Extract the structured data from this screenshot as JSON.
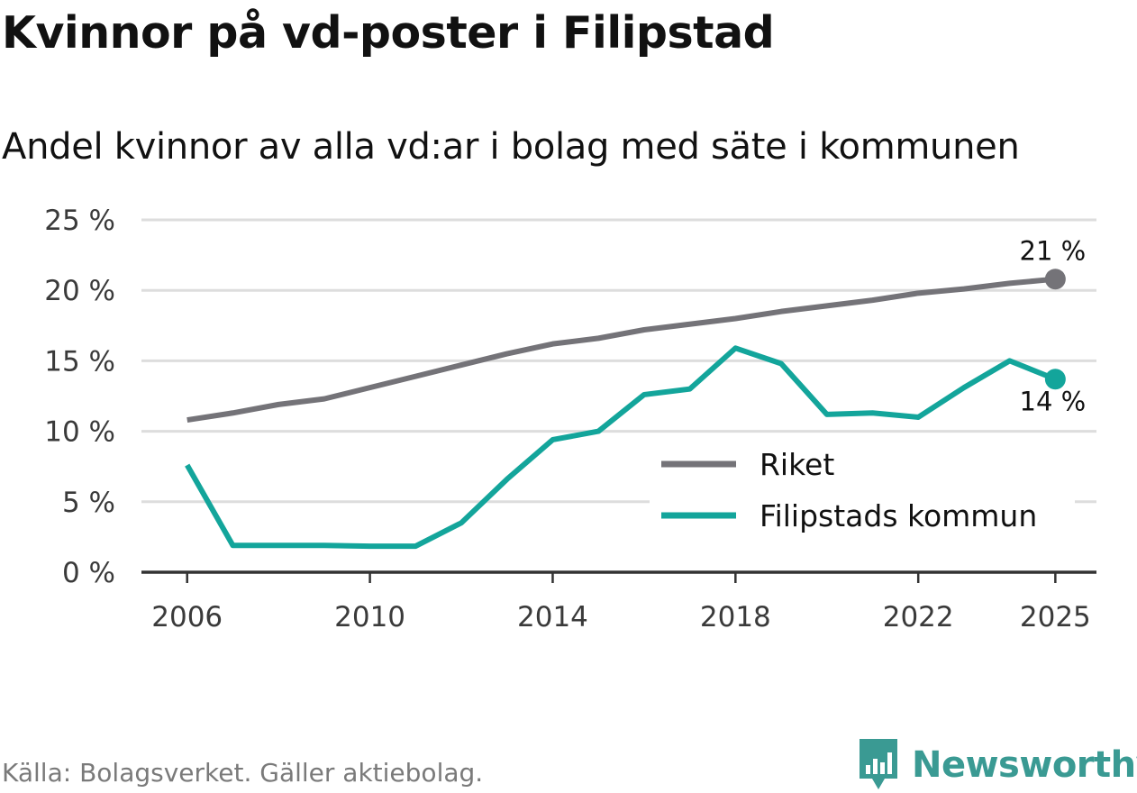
{
  "header": {
    "title": "Kvinnor på vd-poster i Filipstad",
    "subtitle": "Andel kvinnor av alla vd:ar i bolag med säte i kommunen"
  },
  "footer": {
    "source": "Källa: Bolagsverket. Gäller aktiebolag.",
    "brand": "Newsworthy",
    "brand_icon": "bar-chart-badge-icon"
  },
  "colors": {
    "riket": "#747378",
    "kommun": "#13a59b",
    "grid": "#dddddd",
    "axis": "#333333",
    "brand": "#3a9a93"
  },
  "chart_data": {
    "type": "line",
    "title": "Kvinnor på vd-poster i Filipstad",
    "subtitle": "Andel kvinnor av alla vd:ar i bolag med säte i kommunen",
    "xlabel": "",
    "ylabel": "",
    "x": [
      2006,
      2007,
      2008,
      2009,
      2010,
      2011,
      2012,
      2013,
      2014,
      2015,
      2016,
      2017,
      2018,
      2019,
      2020,
      2021,
      2022,
      2023,
      2024,
      2025
    ],
    "xlim": [
      2005,
      2025.9
    ],
    "ylim": [
      0,
      25
    ],
    "x_ticks": [
      2006,
      2010,
      2014,
      2018,
      2022,
      2025
    ],
    "x_tick_labels": [
      "2006",
      "2010",
      "2014",
      "2018",
      "2022",
      "2025"
    ],
    "y_ticks": [
      0,
      5,
      10,
      15,
      20,
      25
    ],
    "y_tick_labels": [
      "0 %",
      "5 %",
      "10 %",
      "15 %",
      "20 %",
      "25 %"
    ],
    "grid": true,
    "legend_position": "bottom-right",
    "series": [
      {
        "name": "Riket",
        "color": "#747378",
        "values": [
          10.8,
          11.3,
          11.9,
          12.3,
          13.1,
          13.9,
          14.7,
          15.5,
          16.2,
          16.6,
          17.2,
          17.6,
          18.0,
          18.5,
          18.9,
          19.3,
          19.8,
          20.1,
          20.5,
          20.8
        ],
        "end_label": "21 %",
        "end_label_position": "above"
      },
      {
        "name": "Filipstads kommun",
        "color": "#13a59b",
        "values": [
          7.6,
          1.9,
          1.9,
          1.9,
          1.85,
          1.85,
          3.5,
          6.6,
          9.4,
          10.0,
          12.6,
          13.0,
          15.9,
          14.8,
          11.2,
          11.3,
          11.0,
          13.1,
          15.0,
          13.7
        ],
        "end_label": "14 %",
        "end_label_position": "below"
      }
    ]
  }
}
